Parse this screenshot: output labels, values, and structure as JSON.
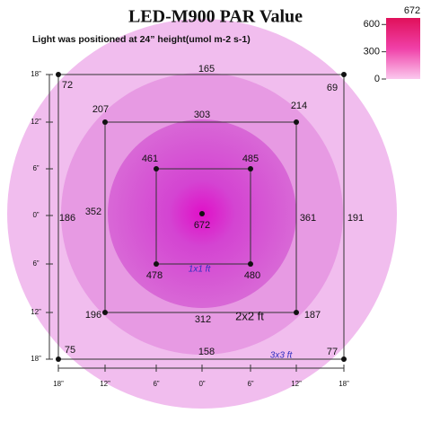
{
  "title": "LED-M900 PAR Value",
  "subtitle": "Light was positioned at 24”  height(umol m-2 s-1)",
  "colorbar": {
    "max": 672,
    "ticks": [
      600,
      300,
      0
    ]
  },
  "y_axis_labels": [
    "18”",
    "12”",
    "6”",
    "0”",
    "6”",
    "12”",
    "18”"
  ],
  "x_axis_labels": [
    "18”",
    "12”",
    "6”",
    "0”",
    "6”",
    "12”",
    "18”"
  ],
  "readings": [
    72,
    165,
    69,
    207,
    303,
    214,
    461,
    485,
    186,
    352,
    672,
    361,
    191,
    478,
    480,
    196,
    312,
    187,
    75,
    158,
    77
  ],
  "square_labels": [
    "1x1 ft",
    "2x2 ft",
    "3x3 ft"
  ]
}
